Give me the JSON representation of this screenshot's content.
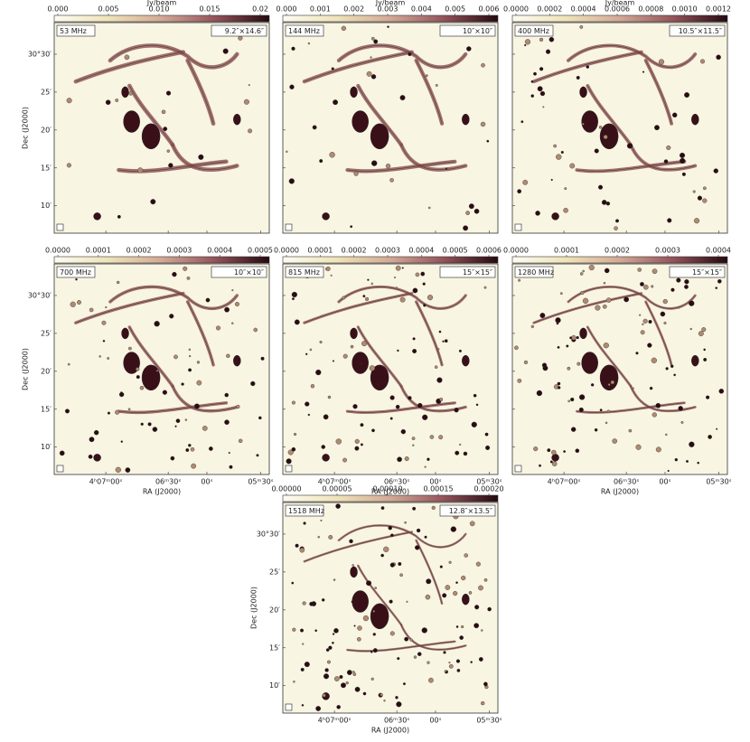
{
  "axis_labels": {
    "dec": "Dec (J2000)",
    "ra": "RA (J2000)",
    "colorbar": "Jy/beam"
  },
  "dec_ticks": [
    "30°30′",
    "25′",
    "20′",
    "15′",
    "10′"
  ],
  "ra_ticks": [
    "4ʰ07ᵐ00ˢ",
    "06ᵐ30ˢ",
    "00ˢ",
    "05ᵐ30ˢ"
  ],
  "panels": [
    {
      "frequency": "53 MHz",
      "beam": "9.2″×14.6″",
      "colorbar_ticks": [
        "0.000",
        "0.005",
        "0.010",
        "0.015",
        "0.02"
      ]
    },
    {
      "frequency": "144 MHz",
      "beam": "10″×10″",
      "colorbar_ticks": [
        "0.000",
        "0.001",
        "0.002",
        "0.003",
        "0.004",
        "0.005",
        "0.006"
      ]
    },
    {
      "frequency": "400 MHz",
      "beam": "10.5″×11.5″",
      "colorbar_ticks": [
        "0.0000",
        "0.0002",
        "0.0004",
        "0.0006",
        "0.0008",
        "0.0010",
        "0.0012"
      ]
    },
    {
      "frequency": "700 MHz",
      "beam": "10″×10″",
      "colorbar_ticks": [
        "0.0000",
        "0.0001",
        "0.0002",
        "0.0003",
        "0.0004",
        "0.0005"
      ]
    },
    {
      "frequency": "815 MHz",
      "beam": "15″×15″",
      "colorbar_ticks": [
        "0.0000",
        "0.0001",
        "0.0002",
        "0.0003",
        "0.0004",
        "0.0005",
        "0.0006"
      ]
    },
    {
      "frequency": "1280 MHz",
      "beam": "15″×15″",
      "colorbar_ticks": [
        "0.0000",
        "0.0001",
        "0.0002",
        "0.0003",
        "0.0004"
      ]
    },
    {
      "frequency": "1518 MHz",
      "beam": "12.8″×13.5″",
      "colorbar_ticks": [
        "0.00000",
        "0.00005",
        "0.00010",
        "0.00015",
        "0.00020"
      ]
    }
  ]
}
